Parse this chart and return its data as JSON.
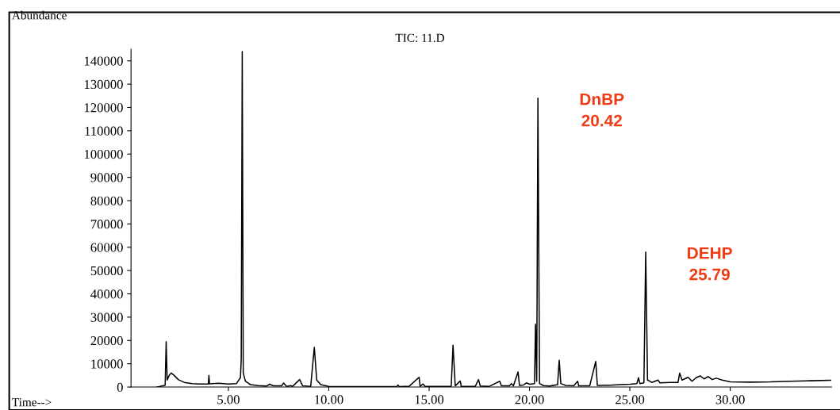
{
  "chart_data": {
    "type": "line",
    "title": "TIC: 11.D",
    "ylabel": "Abundance",
    "xlabel": "Time-->",
    "x": [
      1.45,
      1.6,
      1.85,
      1.9,
      1.95,
      2.05,
      2.15,
      2.3,
      2.5,
      2.8,
      3.2,
      3.6,
      4.0,
      4.03,
      4.06,
      4.5,
      5.0,
      5.4,
      5.6,
      5.64,
      5.69,
      5.74,
      5.85,
      6.1,
      6.5,
      6.9,
      7.05,
      7.25,
      7.65,
      7.75,
      7.9,
      8.1,
      8.2,
      8.55,
      8.7,
      9.1,
      9.28,
      9.4,
      9.6,
      10.0,
      11.0,
      12.0,
      13.0,
      13.4,
      13.45,
      13.5,
      14.0,
      14.5,
      14.55,
      14.7,
      14.8,
      15.5,
      16.1,
      16.19,
      16.3,
      16.55,
      16.6,
      17.3,
      17.46,
      17.55,
      18.0,
      18.52,
      18.6,
      19.0,
      19.1,
      19.2,
      19.43,
      19.5,
      19.7,
      19.85,
      20.0,
      20.25,
      20.3,
      20.36,
      20.42,
      20.5,
      20.7,
      21.0,
      21.4,
      21.48,
      21.56,
      21.8,
      22.2,
      22.4,
      22.45,
      23.0,
      23.3,
      23.38,
      24.0,
      24.5,
      25.0,
      25.35,
      25.43,
      25.5,
      25.7,
      25.79,
      25.88,
      26.1,
      26.4,
      26.5,
      27.0,
      27.4,
      27.48,
      27.6,
      27.9,
      28.1,
      28.3,
      28.5,
      28.7,
      28.9,
      29.1,
      29.3,
      29.6,
      30.0,
      31.0,
      32.0,
      33.0,
      34.0,
      35.0
    ],
    "series": [
      {
        "color": "#000000",
        "values": [
          0,
          300,
          800,
          19500,
          3000,
          5000,
          6000,
          5000,
          3200,
          2000,
          1500,
          1300,
          1300,
          5000,
          1400,
          1600,
          1300,
          1500,
          4000,
          12000,
          144000,
          6000,
          2500,
          1000,
          600,
          400,
          1200,
          500,
          500,
          1700,
          300,
          600,
          300,
          3200,
          500,
          300,
          17000,
          3000,
          1000,
          300,
          200,
          200,
          200,
          300,
          900,
          200,
          300,
          4200,
          300,
          1300,
          300,
          300,
          300,
          18000,
          500,
          2600,
          300,
          300,
          3200,
          400,
          300,
          2500,
          500,
          500,
          1500,
          500,
          6500,
          700,
          900,
          1800,
          1200,
          1500,
          27000,
          2500,
          124000,
          1500,
          600,
          400,
          1000,
          11500,
          1500,
          700,
          500,
          2500,
          500,
          500,
          11000,
          700,
          800,
          1000,
          1200,
          1500,
          4000,
          1500,
          1800,
          58000,
          3000,
          2000,
          3000,
          1800,
          2000,
          2000,
          6000,
          3000,
          4200,
          2500,
          4000,
          4800,
          3500,
          4500,
          3200,
          3800,
          3000,
          2200,
          2100,
          2200,
          2500,
          2700,
          2900
        ]
      }
    ],
    "xlim": [
      0.15,
      35.05
    ],
    "ylim": [
      0,
      145000
    ],
    "xticks": [
      {
        "value": 5,
        "label": "5.00"
      },
      {
        "value": 10,
        "label": "10.00"
      },
      {
        "value": 15,
        "label": "15.00"
      },
      {
        "value": 20,
        "label": "20.00"
      },
      {
        "value": 25,
        "label": "25.00"
      },
      {
        "value": 30,
        "label": "30.00"
      }
    ],
    "yticks": [
      0,
      10000,
      20000,
      30000,
      40000,
      50000,
      60000,
      70000,
      80000,
      90000,
      100000,
      110000,
      120000,
      130000,
      140000
    ],
    "annotations": [
      {
        "text": "DnBP\n20.42",
        "x": 20.42,
        "y": 124000
      },
      {
        "text": "DEHP\n25.79",
        "x": 25.79,
        "y": 58000
      }
    ],
    "grid": false,
    "legend": false,
    "marker": "none",
    "line_style": "solid"
  }
}
